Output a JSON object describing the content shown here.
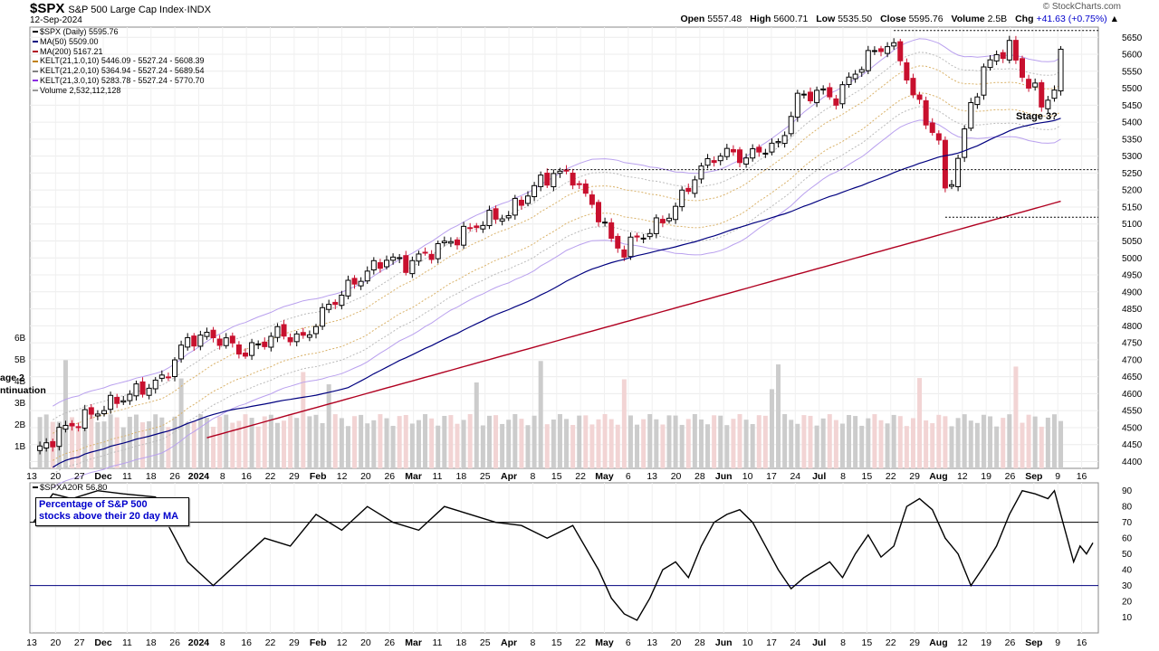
{
  "header": {
    "symbol": "$SPX",
    "name": "S&P 500 Large Cap Index",
    "exchange": "INDX",
    "date": "12-Sep-2024",
    "brand": "© StockCharts.com",
    "open_label": "Open",
    "open": "5557.48",
    "high_label": "High",
    "high": "5600.71",
    "low_label": "Low",
    "low": "5535.50",
    "close_label": "Close",
    "close": "5595.76",
    "volume_label": "Volume",
    "volume": "2.5B",
    "chg_label": "Chg",
    "chg": "+41.63 (+0.75%)"
  },
  "legend": [
    {
      "text": "$SPX (Daily) 5595.76",
      "color": "#000000"
    },
    {
      "text": "MA(50) 5509.00",
      "color": "#00007f"
    },
    {
      "text": "MA(200) 5167.21",
      "color": "#b00020"
    },
    {
      "text": "KELT(21,1.0,10) 5446.09 - 5527.24 - 5608.39",
      "color": "#c08000"
    },
    {
      "text": "KELT(21,2.0,10) 5364.94 - 5527.24 - 5689.54",
      "color": "#808080"
    },
    {
      "text": "KELT(21,3.0,10) 5283.78 - 5527.24 - 5770.70",
      "color": "#8a2be2"
    },
    {
      "text": "Volume 2,532,112,128",
      "color": "#999999"
    }
  ],
  "lower_legend": "$SPXA20R 56.80",
  "note": {
    "line1": "Percentage of S&P 500",
    "line2": "stocks above their 20 day MA"
  },
  "side_labels": {
    "stage_top": "age 2",
    "stage_bottom": "ntinuation"
  },
  "colors": {
    "up": "#000000",
    "down": "#c8102e",
    "ma50": "#00007f",
    "ma200": "#b00020",
    "vol_up": "#cccccc",
    "vol_down": "#f2d4d4",
    "kelt3": "#b9a0ee"
  },
  "chart_data": [
    {
      "type": "candlestick",
      "title": "$SPX (Daily)",
      "y_ticks": [
        4400,
        4450,
        4500,
        4550,
        4600,
        4650,
        4700,
        4750,
        4800,
        4850,
        4900,
        4950,
        5000,
        5050,
        5100,
        5150,
        5200,
        5250,
        5300,
        5350,
        5400,
        5450,
        5500,
        5550,
        5600,
        5650
      ],
      "ylim": [
        4380,
        5680
      ],
      "volume_ticks": [
        "1B",
        "2B",
        "3B",
        "4B",
        "5B",
        "6B"
      ],
      "x_ticks": [
        "13",
        "20",
        "27",
        "Dec",
        "11",
        "18",
        "26",
        "2024",
        "8",
        "16",
        "22",
        "29",
        "Feb",
        "12",
        "20",
        "26",
        "Mar",
        "11",
        "18",
        "25",
        "Apr",
        "8",
        "15",
        "22",
        "May",
        "6",
        "13",
        "20",
        "28",
        "Jun",
        "10",
        "17",
        "24",
        "Jul",
        "8",
        "15",
        "22",
        "29",
        "Aug",
        "12",
        "19",
        "26",
        "Sep",
        "9",
        "16"
      ],
      "bold_ticks": [
        "Dec",
        "2024",
        "Feb",
        "Mar",
        "Apr",
        "May",
        "Jun",
        "Jul",
        "Aug",
        "Sep"
      ],
      "close_path": [
        [
          0,
          4420
        ],
        [
          5,
          4500
        ],
        [
          10,
          4550
        ],
        [
          14,
          4590
        ],
        [
          20,
          4640
        ],
        [
          24,
          4760
        ],
        [
          28,
          4770
        ],
        [
          33,
          4720
        ],
        [
          38,
          4780
        ],
        [
          42,
          4760
        ],
        [
          46,
          4860
        ],
        [
          50,
          4930
        ],
        [
          55,
          5000
        ],
        [
          58,
          4980
        ],
        [
          62,
          5020
        ],
        [
          66,
          5060
        ],
        [
          70,
          5110
        ],
        [
          74,
          5130
        ],
        [
          78,
          5210
        ],
        [
          81,
          5250
        ],
        [
          84,
          5240
        ],
        [
          86,
          5180
        ],
        [
          88,
          5130
        ],
        [
          90,
          5050
        ],
        [
          92,
          5020
        ],
        [
          94,
          5060
        ],
        [
          96,
          5080
        ],
        [
          98,
          5110
        ],
        [
          100,
          5150
        ],
        [
          103,
          5240
        ],
        [
          106,
          5300
        ],
        [
          109,
          5310
        ],
        [
          111,
          5290
        ],
        [
          113,
          5320
        ],
        [
          116,
          5330
        ],
        [
          119,
          5470
        ],
        [
          122,
          5490
        ],
        [
          125,
          5470
        ],
        [
          128,
          5550
        ],
        [
          131,
          5610
        ],
        [
          133,
          5630
        ],
        [
          135,
          5590
        ],
        [
          137,
          5480
        ],
        [
          139,
          5410
        ],
        [
          141,
          5340
        ],
        [
          142,
          5190
        ],
        [
          144,
          5290
        ],
        [
          146,
          5450
        ],
        [
          148,
          5550
        ],
        [
          150,
          5600
        ],
        [
          152,
          5620
        ],
        [
          154,
          5540
        ],
        [
          156,
          5490
        ],
        [
          157,
          5450
        ],
        [
          159,
          5500
        ],
        [
          160,
          5590
        ]
      ],
      "annotations": [
        "Stage 3?"
      ],
      "levels": [
        5670,
        5260,
        5120
      ],
      "last": 5595.76
    },
    {
      "type": "line",
      "title": "$SPXA20R",
      "y_ticks": [
        10,
        20,
        30,
        40,
        50,
        60,
        70,
        80,
        90
      ],
      "ylim": [
        0,
        95
      ],
      "reference_lines": [
        30,
        70
      ],
      "last": 56.8,
      "points": [
        [
          0,
          70
        ],
        [
          3,
          88
        ],
        [
          6,
          85
        ],
        [
          10,
          90
        ],
        [
          14,
          88
        ],
        [
          19,
          86
        ],
        [
          21,
          68
        ],
        [
          24,
          45
        ],
        [
          28,
          30
        ],
        [
          32,
          45
        ],
        [
          36,
          60
        ],
        [
          40,
          55
        ],
        [
          44,
          75
        ],
        [
          48,
          65
        ],
        [
          52,
          80
        ],
        [
          56,
          70
        ],
        [
          60,
          65
        ],
        [
          64,
          80
        ],
        [
          68,
          75
        ],
        [
          72,
          70
        ],
        [
          76,
          68
        ],
        [
          80,
          60
        ],
        [
          84,
          68
        ],
        [
          88,
          40
        ],
        [
          90,
          22
        ],
        [
          92,
          12
        ],
        [
          94,
          8
        ],
        [
          96,
          22
        ],
        [
          98,
          40
        ],
        [
          100,
          45
        ],
        [
          102,
          35
        ],
        [
          104,
          55
        ],
        [
          106,
          70
        ],
        [
          108,
          75
        ],
        [
          110,
          78
        ],
        [
          112,
          70
        ],
        [
          114,
          55
        ],
        [
          116,
          40
        ],
        [
          118,
          28
        ],
        [
          120,
          35
        ],
        [
          122,
          40
        ],
        [
          124,
          45
        ],
        [
          126,
          35
        ],
        [
          128,
          50
        ],
        [
          130,
          62
        ],
        [
          132,
          48
        ],
        [
          134,
          55
        ],
        [
          136,
          80
        ],
        [
          138,
          85
        ],
        [
          140,
          78
        ],
        [
          142,
          60
        ],
        [
          144,
          50
        ],
        [
          146,
          30
        ],
        [
          148,
          42
        ],
        [
          150,
          55
        ],
        [
          152,
          75
        ],
        [
          154,
          90
        ],
        [
          156,
          88
        ],
        [
          158,
          85
        ],
        [
          159,
          90
        ],
        [
          160,
          75
        ],
        [
          161,
          60
        ],
        [
          162,
          45
        ],
        [
          163,
          55
        ],
        [
          164,
          50
        ],
        [
          165,
          57
        ]
      ]
    }
  ]
}
